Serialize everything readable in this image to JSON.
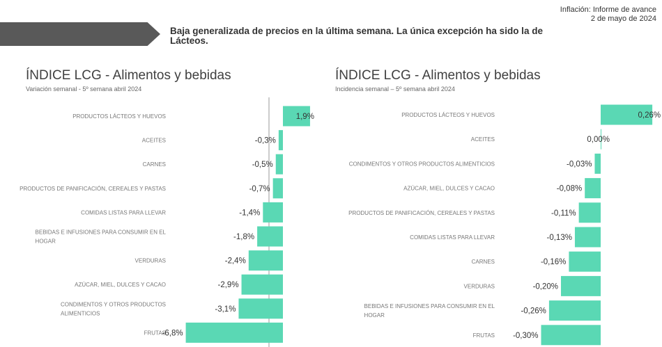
{
  "header": {
    "report_line1": "Inflación: Informe de avance",
    "report_line2": "2 de mayo de 2024",
    "headline": "Baja generalizada  de precios en la última semana. La única excepción ha sido la de Lácteos."
  },
  "colors": {
    "bar": "#5ad8b4",
    "banner": "#595959"
  },
  "chart_data": [
    {
      "type": "bar",
      "orientation": "horizontal",
      "title": "ÍNDICE LCG - Alimentos y bebidas",
      "subtitle": "Variación semanal - 5º semana abril 2024",
      "categories": [
        [
          "PRODUCTOS LÁCTEOS Y HUEVOS"
        ],
        [
          "ACEITES"
        ],
        [
          "CARNES"
        ],
        [
          "PRODUCTOS DE PANIFICACIÓN, CEREALES Y PASTAS"
        ],
        [
          "COMIDAS LISTAS PARA LLEVAR"
        ],
        [
          "BEBIDAS E INFUSIONES PARA CONSUMIR EN EL",
          "HOGAR"
        ],
        [
          "VERDURAS"
        ],
        [
          "AZÚCAR, MIEL, DULCES Y CACAO"
        ],
        [
          "CONDIMENTOS Y OTROS PRODUCTOS",
          "ALIMENTICIOS"
        ],
        [
          "FRUTAS"
        ]
      ],
      "values": [
        1.9,
        -0.3,
        -0.5,
        -0.7,
        -1.4,
        -1.8,
        -2.4,
        -2.9,
        -3.1,
        -6.8
      ],
      "labels": [
        "1,9%",
        "-0,3%",
        "-0,5%",
        "-0,7%",
        "-1,4%",
        "-1,8%",
        "-2,4%",
        "-2,9%",
        "-3,1%",
        "-6,8%"
      ]
    },
    {
      "type": "bar",
      "orientation": "horizontal",
      "title": "ÍNDICE LCG - Alimentos y bebidas",
      "subtitle": "Incidencia semanal – 5º semana abril 2024",
      "categories": [
        [
          "PRODUCTOS LÁCTEOS Y HUEVOS"
        ],
        [
          "ACEITES"
        ],
        [
          "CONDIMENTOS Y OTROS PRODUCTOS ALIMENTICIOS"
        ],
        [
          "AZÚCAR, MIEL, DULCES Y CACAO"
        ],
        [
          "PRODUCTOS DE PANIFICACIÓN, CEREALES Y PASTAS"
        ],
        [
          "COMIDAS LISTAS PARA LLEVAR"
        ],
        [
          "CARNES"
        ],
        [
          "VERDURAS"
        ],
        [
          "BEBIDAS E INFUSIONES PARA CONSUMIR EN EL",
          "HOGAR"
        ],
        [
          "FRUTAS"
        ]
      ],
      "values": [
        0.26,
        0.0,
        -0.03,
        -0.08,
        -0.11,
        -0.13,
        -0.16,
        -0.2,
        -0.26,
        -0.3
      ],
      "labels": [
        "0,26%",
        "0,00%",
        "-0,03%",
        "-0,08%",
        "-0,11%",
        "-0,13%",
        "-0,16%",
        "-0,20%",
        "-0,26%",
        "-0,30%"
      ]
    }
  ]
}
